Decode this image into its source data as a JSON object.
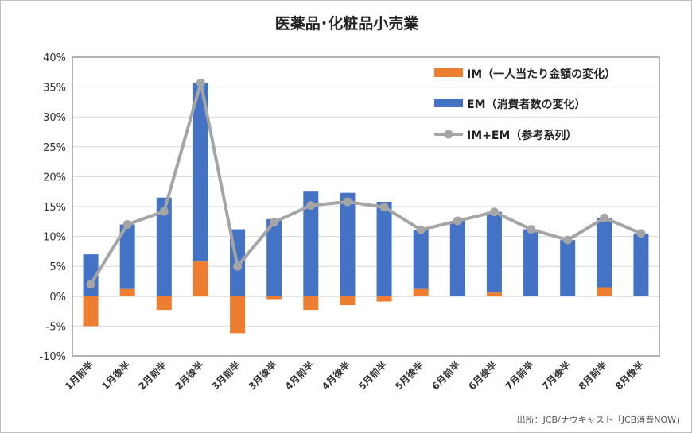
{
  "chart_data": {
    "type": "bar",
    "title": "医薬品･化粧品小売業",
    "source": "出所：JCB/ナウキャスト「JCB消費NOW」",
    "categories": [
      "1月前半",
      "1月後半",
      "2月前半",
      "2月後半",
      "3月前半",
      "3月後半",
      "4月前半",
      "4月後半",
      "5月前半",
      "5月後半",
      "6月前半",
      "6月後半",
      "7月前半",
      "7月後半",
      "8月前半",
      "8月後半"
    ],
    "ylim": [
      -10,
      40
    ],
    "yticks": [
      "-10%",
      "-5%",
      "0%",
      "5%",
      "10%",
      "15%",
      "20%",
      "25%",
      "30%",
      "35%",
      "40%"
    ],
    "ytick_values": [
      -10,
      -5,
      0,
      5,
      10,
      15,
      20,
      25,
      30,
      35,
      40
    ],
    "grid": true,
    "legend_position": "top-right",
    "series": [
      {
        "name": "IM（一人当たり金額の変化）",
        "kind": "stacked-bar",
        "color": "#ED7D31",
        "values": [
          -5.0,
          1.2,
          -2.3,
          5.8,
          -6.2,
          -0.5,
          -2.3,
          -1.5,
          -0.9,
          1.2,
          0.0,
          0.6,
          0.0,
          0.0,
          1.5,
          0.0
        ]
      },
      {
        "name": "EM（消費者数の変化）",
        "kind": "stacked-bar",
        "color": "#4472C4",
        "values": [
          7.0,
          10.8,
          16.5,
          29.9,
          11.2,
          12.9,
          17.5,
          17.3,
          15.8,
          9.9,
          12.6,
          13.5,
          11.2,
          9.4,
          11.6,
          10.5
        ]
      },
      {
        "name": "IM+EM（参考系列）",
        "kind": "line",
        "color": "#A5A5A5",
        "values": [
          2.0,
          12.0,
          14.2,
          35.7,
          5.0,
          12.4,
          15.2,
          15.8,
          14.9,
          11.1,
          12.6,
          14.1,
          11.2,
          9.4,
          13.1,
          10.5
        ]
      }
    ]
  }
}
